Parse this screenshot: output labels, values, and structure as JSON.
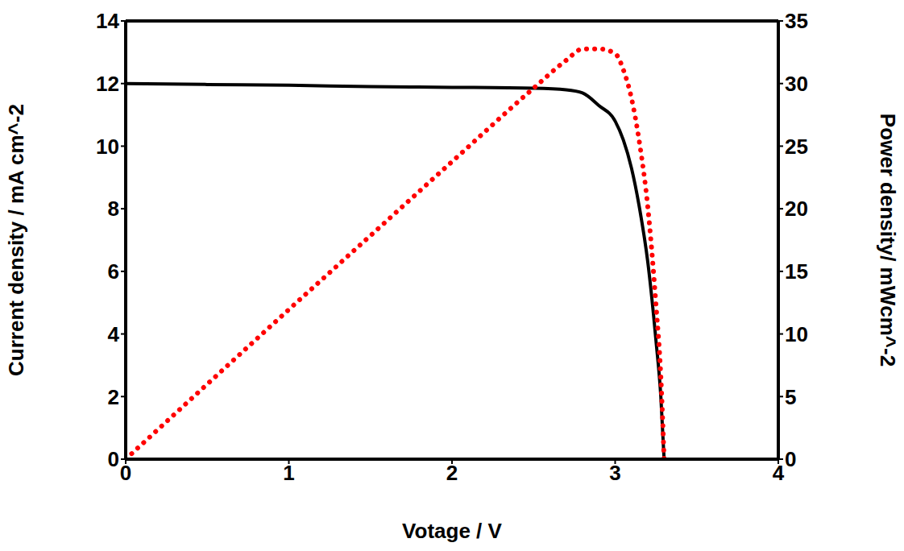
{
  "chart_data": {
    "type": "line",
    "x_label": "Votage / V",
    "y_label": "Current density / mA cm^-2",
    "y2_label": "Power density/ mWcm^-2",
    "x": [
      0,
      0.5,
      1,
      1.5,
      2,
      2.5,
      2.7,
      2.8,
      2.9,
      3.0,
      3.05,
      3.1,
      3.15,
      3.2,
      3.25,
      3.28,
      3.3
    ],
    "series": [
      {
        "color": "#000000",
        "line_style": "solid",
        "axis": "y",
        "values": [
          12.0,
          11.97,
          11.95,
          11.9,
          11.88,
          11.85,
          11.8,
          11.7,
          11.3,
          10.8,
          10.2,
          9.3,
          8.0,
          6.3,
          3.8,
          2.0,
          0
        ]
      },
      {
        "color": "#ff0000",
        "line_style": "dotted",
        "axis": "y2",
        "values": [
          0,
          5.99,
          11.95,
          17.85,
          23.76,
          29.63,
          31.86,
          32.76,
          32.77,
          32.4,
          31.11,
          28.83,
          25.2,
          20.16,
          12.35,
          6.56,
          0
        ]
      }
    ],
    "xlim": [
      0,
      4
    ],
    "xticks": [
      0,
      1,
      2,
      3,
      4
    ],
    "ylim": [
      0,
      14
    ],
    "yticks": [
      0,
      2,
      4,
      6,
      8,
      10,
      12,
      14
    ],
    "y2lim": [
      0,
      35
    ],
    "y2ticks": [
      0,
      5,
      10,
      15,
      20,
      25,
      30,
      35
    ],
    "grid": false
  }
}
